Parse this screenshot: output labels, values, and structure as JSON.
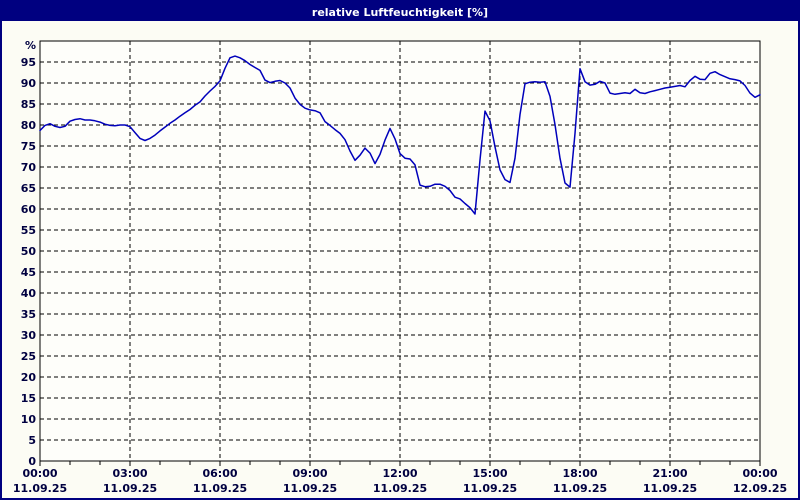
{
  "window": {
    "title": "relative Luftfeuchtigkeit [%]"
  },
  "colors": {
    "frame": "#000080",
    "titlebar_bg": "#000080",
    "titlebar_text": "#ffffff",
    "page_bg": "#fcfcf4",
    "plot_bg": "#fefefa",
    "line": "#0000bb",
    "grid": "#000000",
    "axis": "#000000",
    "label": "#000040"
  },
  "chart_data": {
    "type": "line",
    "title": "relative Luftfeuchtigkeit [%]",
    "ylabel": "%",
    "ylim": [
      0,
      100
    ],
    "y_ticks": [
      0,
      5,
      10,
      15,
      20,
      25,
      30,
      35,
      40,
      45,
      50,
      55,
      60,
      65,
      70,
      75,
      80,
      85,
      90,
      95
    ],
    "y_unit_label": "%",
    "grid": "dashed",
    "legend_position": "none",
    "x_ticks": [
      {
        "time": "00:00",
        "date": "11.09.25"
      },
      {
        "time": "03:00",
        "date": "11.09.25"
      },
      {
        "time": "06:00",
        "date": "11.09.25"
      },
      {
        "time": "09:00",
        "date": "11.09.25"
      },
      {
        "time": "12:00",
        "date": "11.09.25"
      },
      {
        "time": "15:00",
        "date": "11.09.25"
      },
      {
        "time": "18:00",
        "date": "11.09.25"
      },
      {
        "time": "21:00",
        "date": "11.09.25"
      },
      {
        "time": "00:00",
        "date": "12.09.25"
      }
    ],
    "x_major_tick_hours": 3,
    "x_minor_tick_hours": 1,
    "x_range_hours": [
      0,
      24
    ],
    "series": [
      {
        "name": "relative Luftfeuchtigkeit",
        "unit": "%",
        "start_hour": 0,
        "step_minutes": 10,
        "values": [
          78.7,
          79.9,
          80.3,
          79.7,
          79.4,
          79.7,
          80.9,
          81.3,
          81.5,
          81.2,
          81.2,
          81.0,
          80.7,
          80.2,
          79.9,
          79.8,
          80.0,
          80.0,
          79.6,
          78.2,
          76.8,
          76.3,
          76.8,
          77.6,
          78.6,
          79.5,
          80.4,
          81.2,
          82.1,
          82.9,
          83.7,
          84.7,
          85.5,
          86.9,
          88.1,
          89.2,
          90.5,
          93.5,
          96.0,
          96.4,
          96.0,
          95.3,
          94.4,
          93.7,
          93.0,
          90.7,
          90.1,
          90.4,
          90.6,
          90.0,
          88.8,
          86.4,
          84.9,
          84.0,
          83.6,
          83.4,
          82.9,
          80.8,
          79.9,
          78.9,
          78.0,
          76.5,
          73.8,
          71.6,
          72.8,
          74.5,
          73.3,
          70.8,
          73.0,
          76.4,
          79.2,
          76.7,
          73.2,
          72.1,
          71.9,
          70.5,
          65.7,
          65.3,
          65.4,
          65.9,
          65.9,
          65.4,
          64.4,
          62.8,
          62.4,
          61.3,
          60.3,
          58.8,
          71.7,
          83.3,
          81.0,
          74.8,
          69.3,
          67.0,
          66.3,
          72.1,
          82.5,
          89.8,
          90.2,
          90.3,
          90.2,
          90.3,
          86.8,
          80.1,
          72.1,
          66.2,
          65.2,
          78.0,
          93.4,
          90.3,
          89.5,
          89.7,
          90.4,
          90.0,
          87.6,
          87.3,
          87.5,
          87.7,
          87.5,
          88.5,
          87.7,
          87.5,
          87.9,
          88.2,
          88.5,
          88.8,
          89.0,
          89.2,
          89.4,
          89.1,
          90.6,
          91.6,
          90.9,
          90.8,
          92.3,
          92.7,
          92.0,
          91.5,
          91.0,
          90.8,
          90.5,
          89.4,
          87.6,
          86.6,
          87.2
        ]
      }
    ]
  }
}
